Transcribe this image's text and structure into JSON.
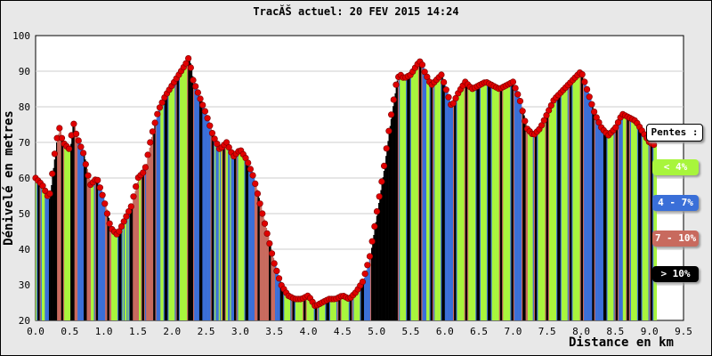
{
  "title": "TracĂŠ actuel: 20 FEV 2015 14:24",
  "legend": {
    "title": "Pentes :",
    "items": [
      {
        "label": "< 4%",
        "color": "#a8f53c"
      },
      {
        "label": "4 - 7%",
        "color": "#3a6fd8"
      },
      {
        "label": "7 - 10%",
        "color": "#c86a5e"
      },
      {
        "label": "> 10%",
        "color": "#000000"
      }
    ]
  },
  "chart_data": {
    "type": "bar",
    "xlabel": "Distance en km",
    "ylabel": "Dénivelé en metres",
    "xlim": [
      0,
      9.5
    ],
    "ylim": [
      20,
      100
    ],
    "xticks": [
      "0.0",
      "0.5",
      "1.0",
      "1.5",
      "2.0",
      "2.5",
      "3.0",
      "3.5",
      "4.0",
      "4.5",
      "5.0",
      "5.5",
      "6.0",
      "6.5",
      "7.0",
      "7.5",
      "8.0",
      "8.5",
      "9.0",
      "9.5"
    ],
    "yticks": [
      "20",
      "30",
      "40",
      "50",
      "60",
      "70",
      "80",
      "90",
      "100"
    ],
    "grid": true,
    "colors": {
      "marker": "#e00000",
      "grid": "#cccccc"
    },
    "profile": [
      [
        0.0,
        60
      ],
      [
        0.1,
        58
      ],
      [
        0.2,
        54
      ],
      [
        0.3,
        70
      ],
      [
        0.35,
        74
      ],
      [
        0.4,
        70
      ],
      [
        0.5,
        68
      ],
      [
        0.55,
        76
      ],
      [
        0.6,
        72
      ],
      [
        0.7,
        67
      ],
      [
        0.8,
        58
      ],
      [
        0.9,
        60
      ],
      [
        1.0,
        54
      ],
      [
        1.05,
        50
      ],
      [
        1.1,
        46
      ],
      [
        1.2,
        44
      ],
      [
        1.3,
        48
      ],
      [
        1.4,
        52
      ],
      [
        1.5,
        60
      ],
      [
        1.6,
        62
      ],
      [
        1.7,
        72
      ],
      [
        1.8,
        79
      ],
      [
        1.9,
        83
      ],
      [
        2.0,
        86
      ],
      [
        2.1,
        89
      ],
      [
        2.2,
        92
      ],
      [
        2.25,
        94
      ],
      [
        2.3,
        88
      ],
      [
        2.4,
        83
      ],
      [
        2.5,
        78
      ],
      [
        2.6,
        72
      ],
      [
        2.7,
        68
      ],
      [
        2.8,
        70
      ],
      [
        2.9,
        66
      ],
      [
        3.0,
        68
      ],
      [
        3.1,
        65
      ],
      [
        3.2,
        60
      ],
      [
        3.3,
        52
      ],
      [
        3.4,
        44
      ],
      [
        3.5,
        36
      ],
      [
        3.6,
        30
      ],
      [
        3.7,
        27
      ],
      [
        3.8,
        26
      ],
      [
        3.9,
        26
      ],
      [
        4.0,
        27
      ],
      [
        4.1,
        24
      ],
      [
        4.2,
        25
      ],
      [
        4.3,
        26
      ],
      [
        4.4,
        26
      ],
      [
        4.5,
        27
      ],
      [
        4.6,
        26
      ],
      [
        4.7,
        28
      ],
      [
        4.8,
        31
      ],
      [
        4.9,
        38
      ],
      [
        5.0,
        50
      ],
      [
        5.1,
        62
      ],
      [
        5.2,
        76
      ],
      [
        5.3,
        88
      ],
      [
        5.35,
        89
      ],
      [
        5.4,
        88
      ],
      [
        5.5,
        89
      ],
      [
        5.6,
        92
      ],
      [
        5.65,
        93
      ],
      [
        5.7,
        90
      ],
      [
        5.8,
        86
      ],
      [
        5.9,
        88
      ],
      [
        5.95,
        89
      ],
      [
        6.0,
        86
      ],
      [
        6.1,
        80
      ],
      [
        6.2,
        84
      ],
      [
        6.3,
        87
      ],
      [
        6.4,
        85
      ],
      [
        6.5,
        86
      ],
      [
        6.6,
        87
      ],
      [
        6.7,
        86
      ],
      [
        6.8,
        85
      ],
      [
        6.9,
        86
      ],
      [
        7.0,
        87
      ],
      [
        7.1,
        82
      ],
      [
        7.2,
        74
      ],
      [
        7.3,
        72
      ],
      [
        7.4,
        74
      ],
      [
        7.5,
        78
      ],
      [
        7.6,
        82
      ],
      [
        7.7,
        84
      ],
      [
        7.8,
        86
      ],
      [
        7.9,
        88
      ],
      [
        8.0,
        90
      ],
      [
        8.1,
        84
      ],
      [
        8.2,
        78
      ],
      [
        8.3,
        74
      ],
      [
        8.4,
        72
      ],
      [
        8.5,
        74
      ],
      [
        8.6,
        78
      ],
      [
        8.7,
        77
      ],
      [
        8.8,
        76
      ],
      [
        8.9,
        73
      ],
      [
        9.0,
        70
      ],
      [
        9.1,
        69
      ]
    ]
  }
}
